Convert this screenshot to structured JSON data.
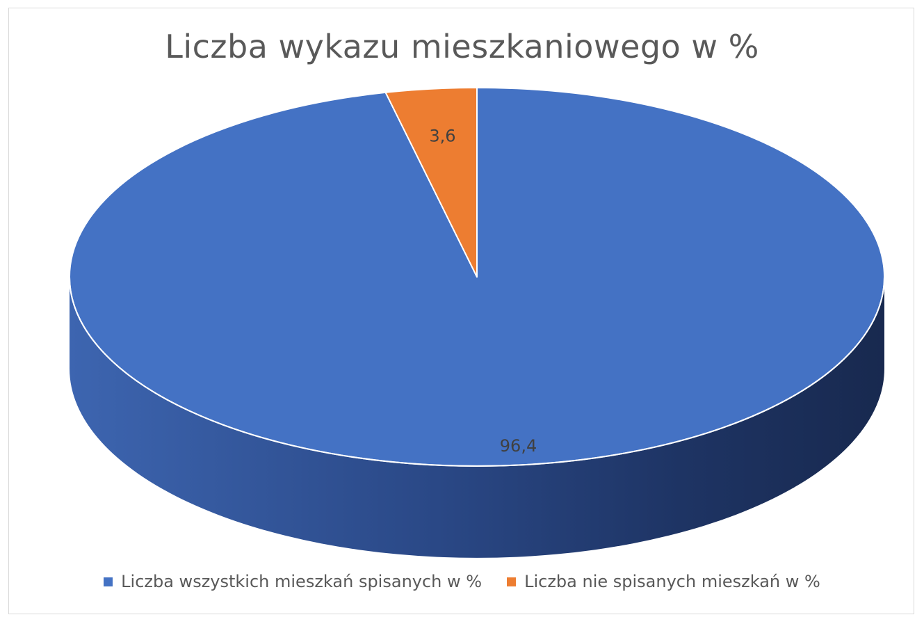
{
  "chart_data": {
    "type": "pie",
    "style": "3d",
    "title": "Liczba wykazu mieszkaniowego w %",
    "categories": [
      "Liczba wszystkich mieszkań spisanych w %",
      "Liczba nie spisanych mieszkań w %"
    ],
    "values": [
      96.4,
      3.6
    ],
    "data_labels": [
      "96,4",
      "3,6"
    ],
    "colors": [
      "#4472c4",
      "#ed7d31"
    ],
    "legend_position": "bottom"
  }
}
